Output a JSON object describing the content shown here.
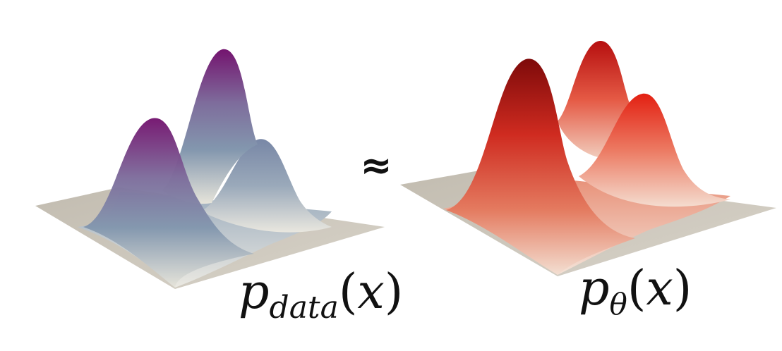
{
  "left_surface": {
    "label_base": "p",
    "label_subscript": "data",
    "label_arg_open": "(",
    "label_arg": "x",
    "label_arg_close": ")",
    "colors": {
      "peak": "#7a1f78",
      "mid": "#7f93ad",
      "base": "#e7e5dd",
      "plane": "#c9c3b7"
    }
  },
  "relation_symbol": "≈",
  "right_surface": {
    "label_base": "p",
    "label_subscript": "θ",
    "label_arg_open": "(",
    "label_arg": "x",
    "label_arg_close": ")",
    "colors": {
      "peak": "#8e0d0d",
      "mid": "#dc4634",
      "base": "#f3ddd0",
      "plane": "#c9c3b7"
    }
  }
}
